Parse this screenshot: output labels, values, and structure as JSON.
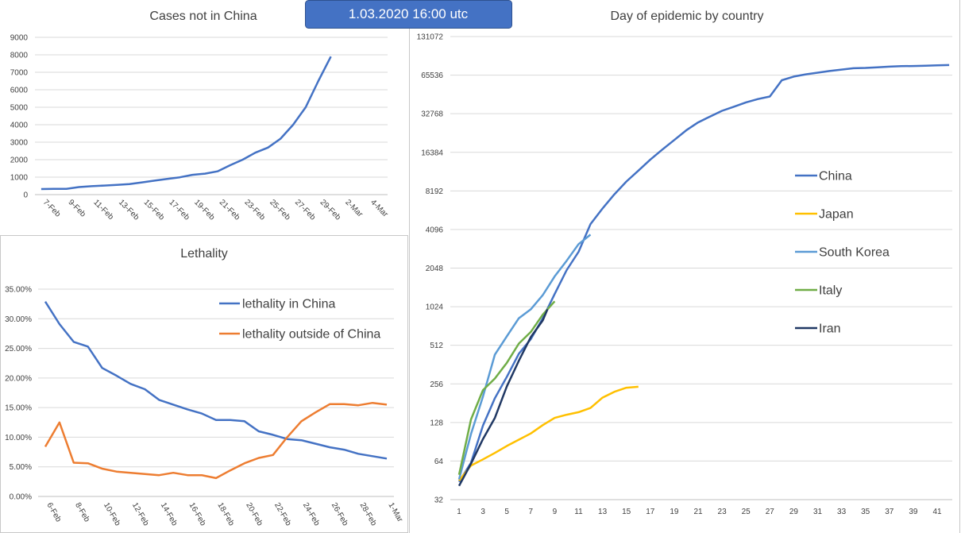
{
  "banner": {
    "text": "1.03.2020 16:00 utc",
    "fill": "#4472c4",
    "border": "#2f528f"
  },
  "chart_data": [
    {
      "id": "cases",
      "type": "line",
      "title": "Cases not in China",
      "ylim": [
        0,
        9000
      ],
      "yticks": [
        0,
        1000,
        2000,
        3000,
        4000,
        5000,
        6000,
        7000,
        8000,
        9000
      ],
      "x_tick_labels": [
        "7-Feb",
        "9-Feb",
        "11-Feb",
        "13-Feb",
        "15-Feb",
        "17-Feb",
        "19-Feb",
        "21-Feb",
        "23-Feb",
        "25-Feb",
        "27-Feb",
        "29-Feb",
        "2-Mar",
        "4-Mar"
      ],
      "x": [
        "7-Feb",
        "8-Feb",
        "9-Feb",
        "10-Feb",
        "11-Feb",
        "12-Feb",
        "13-Feb",
        "14-Feb",
        "15-Feb",
        "16-Feb",
        "17-Feb",
        "18-Feb",
        "19-Feb",
        "20-Feb",
        "21-Feb",
        "22-Feb",
        "23-Feb",
        "24-Feb",
        "25-Feb",
        "26-Feb",
        "27-Feb",
        "28-Feb",
        "29-Feb",
        "1-Mar"
      ],
      "series": [
        {
          "color": "#4472c4",
          "values": [
            320,
            330,
            330,
            430,
            480,
            520,
            560,
            600,
            700,
            800,
            900,
            990,
            1130,
            1200,
            1330,
            1680,
            2000,
            2400,
            2690,
            3200,
            4000,
            5000,
            6500,
            7900
          ]
        }
      ]
    },
    {
      "id": "lethality",
      "type": "line",
      "title": "Lethality",
      "ylim": [
        0,
        0.35
      ],
      "ytick_labels": [
        "0.00%",
        "5.00%",
        "10.00%",
        "15.00%",
        "20.00%",
        "25.00%",
        "30.00%",
        "35.00%"
      ],
      "x_tick_labels": [
        "6-Feb",
        "8-Feb",
        "10-Feb",
        "12-Feb",
        "14-Feb",
        "16-Feb",
        "18-Feb",
        "20-Feb",
        "22-Feb",
        "24-Feb",
        "26-Feb",
        "28-Feb",
        "1-Mar"
      ],
      "x": [
        "6-Feb",
        "7-Feb",
        "8-Feb",
        "9-Feb",
        "10-Feb",
        "11-Feb",
        "12-Feb",
        "13-Feb",
        "14-Feb",
        "15-Feb",
        "16-Feb",
        "17-Feb",
        "18-Feb",
        "19-Feb",
        "20-Feb",
        "21-Feb",
        "22-Feb",
        "23-Feb",
        "24-Feb",
        "25-Feb",
        "26-Feb",
        "27-Feb",
        "28-Feb",
        "29-Feb",
        "1-Mar"
      ],
      "legend_position": "top-right",
      "series": [
        {
          "name": "lethality in China",
          "color": "#4472c4",
          "values": [
            0.329,
            0.291,
            0.261,
            0.253,
            0.217,
            0.204,
            0.19,
            0.181,
            0.163,
            0.155,
            0.147,
            0.14,
            0.129,
            0.129,
            0.127,
            0.11,
            0.104,
            0.097,
            0.095,
            0.089,
            0.083,
            0.079,
            0.072,
            0.068,
            0.064
          ]
        },
        {
          "name": "lethality outside of China",
          "color": "#ed7d31",
          "values": [
            0.084,
            0.125,
            0.057,
            0.056,
            0.047,
            0.042,
            0.04,
            0.038,
            0.036,
            0.04,
            0.036,
            0.036,
            0.031,
            0.044,
            0.056,
            0.065,
            0.07,
            0.1,
            0.127,
            0.142,
            0.156,
            0.156,
            0.154,
            0.158,
            0.155
          ]
        }
      ]
    },
    {
      "id": "epidemic",
      "type": "line",
      "title": "Day of epidemic by country",
      "y_scale": "log2",
      "ylim": [
        32,
        131072
      ],
      "yticks": [
        32,
        64,
        128,
        256,
        512,
        1024,
        2048,
        4096,
        8192,
        16384,
        32768,
        65536,
        131072
      ],
      "xlim": [
        1,
        42
      ],
      "xticks": [
        1,
        3,
        5,
        7,
        9,
        11,
        13,
        15,
        17,
        19,
        21,
        23,
        25,
        27,
        29,
        31,
        33,
        35,
        37,
        39,
        41
      ],
      "legend_position": "right",
      "series": [
        {
          "name": "China",
          "color": "#4472c4",
          "x": [
            1,
            2,
            3,
            4,
            5,
            6,
            7,
            8,
            9,
            10,
            11,
            12,
            13,
            14,
            15,
            16,
            17,
            18,
            19,
            20,
            21,
            22,
            23,
            24,
            25,
            26,
            27,
            28,
            29,
            30,
            31,
            32,
            33,
            34,
            35,
            36,
            37,
            38,
            39,
            40,
            41,
            42
          ],
          "values": [
            44,
            62,
            121,
            198,
            291,
            440,
            571,
            830,
            1287,
            1975,
            2744,
            4515,
            5974,
            7711,
            9692,
            11791,
            14380,
            17205,
            20438,
            24324,
            28018,
            31161,
            34546,
            37198,
            40171,
            42638,
            44653,
            59804,
            63851,
            66492,
            68500,
            70548,
            72436,
            74185,
            74576,
            75465,
            76288,
            76936,
            77150,
            77658,
            78064,
            78497
          ]
        },
        {
          "name": "Japan",
          "color": "#ffc000",
          "x": [
            1,
            2,
            3,
            4,
            5,
            6,
            7,
            8,
            9,
            10,
            11,
            12,
            13,
            14,
            15,
            16
          ],
          "values": [
            45,
            59,
            66,
            74,
            84,
            94,
            105,
            122,
            139,
            147,
            154,
            166,
            200,
            222,
            239,
            243
          ]
        },
        {
          "name": "South Korea",
          "color": "#5b9bd5",
          "x": [
            1,
            2,
            3,
            4,
            5,
            6,
            7,
            8,
            9,
            10,
            11,
            12
          ],
          "values": [
            46,
            104,
            204,
            433,
            602,
            833,
            977,
            1261,
            1766,
            2337,
            3150,
            3736
          ]
        },
        {
          "name": "Italy",
          "color": "#70ad47",
          "x": [
            1,
            2,
            3,
            4,
            5,
            6,
            7,
            8,
            9
          ],
          "values": [
            50,
            135,
            229,
            282,
            374,
            528,
            650,
            888,
            1128
          ]
        },
        {
          "name": "Iran",
          "color": "#203864",
          "x": [
            1,
            2,
            3,
            4,
            5,
            6,
            7,
            8,
            8.4
          ],
          "values": [
            41,
            61,
            95,
            139,
            245,
            388,
            593,
            800,
            978
          ]
        }
      ]
    }
  ]
}
